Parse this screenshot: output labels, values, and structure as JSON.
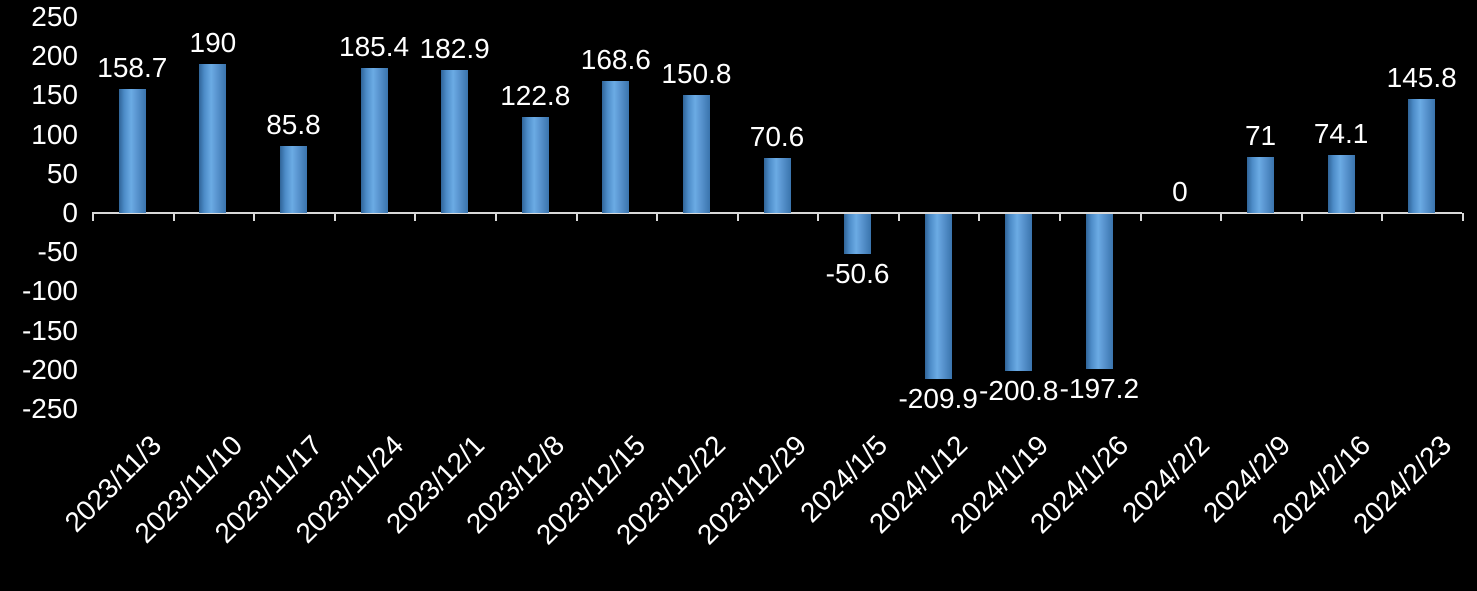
{
  "chart_data": {
    "type": "bar",
    "title": "",
    "xlabel": "",
    "ylabel": "",
    "categories": [
      "2023/11/3",
      "2023/11/10",
      "2023/11/17",
      "2023/11/24",
      "2023/12/1",
      "2023/12/8",
      "2023/12/15",
      "2023/12/22",
      "2023/12/29",
      "2024/1/5",
      "2024/1/12",
      "2024/1/19",
      "2024/1/26",
      "2024/2/2",
      "2024/2/9",
      "2024/2/16",
      "2024/2/23"
    ],
    "values": [
      158.7,
      190,
      85.8,
      185.4,
      182.9,
      122.8,
      168.6,
      150.8,
      70.6,
      -50.6,
      -209.9,
      -200.8,
      -197.2,
      0,
      71,
      74.1,
      145.8
    ],
    "labels": [
      "158.7",
      "190",
      "85.8",
      "185.4",
      "182.9",
      "122.8",
      "168.6",
      "150.8",
      "70.6",
      "-50.6",
      "-209.9",
      "-200.8",
      "-197.2",
      "0",
      "71",
      "74.1",
      "145.8"
    ],
    "ylim": [
      -250,
      250
    ],
    "ytick_interval": 50,
    "yticks": [
      250,
      200,
      150,
      100,
      50,
      0,
      -50,
      -100,
      -150,
      -200,
      -250
    ],
    "grid": false,
    "legend": false,
    "x_label_rotation_deg": 45,
    "colors": {
      "background": "#000000",
      "bar": "#5b9bd5",
      "bar_edge": "#2f6498",
      "axis_line": "#d9d9d9",
      "text": "#ffffff"
    }
  }
}
